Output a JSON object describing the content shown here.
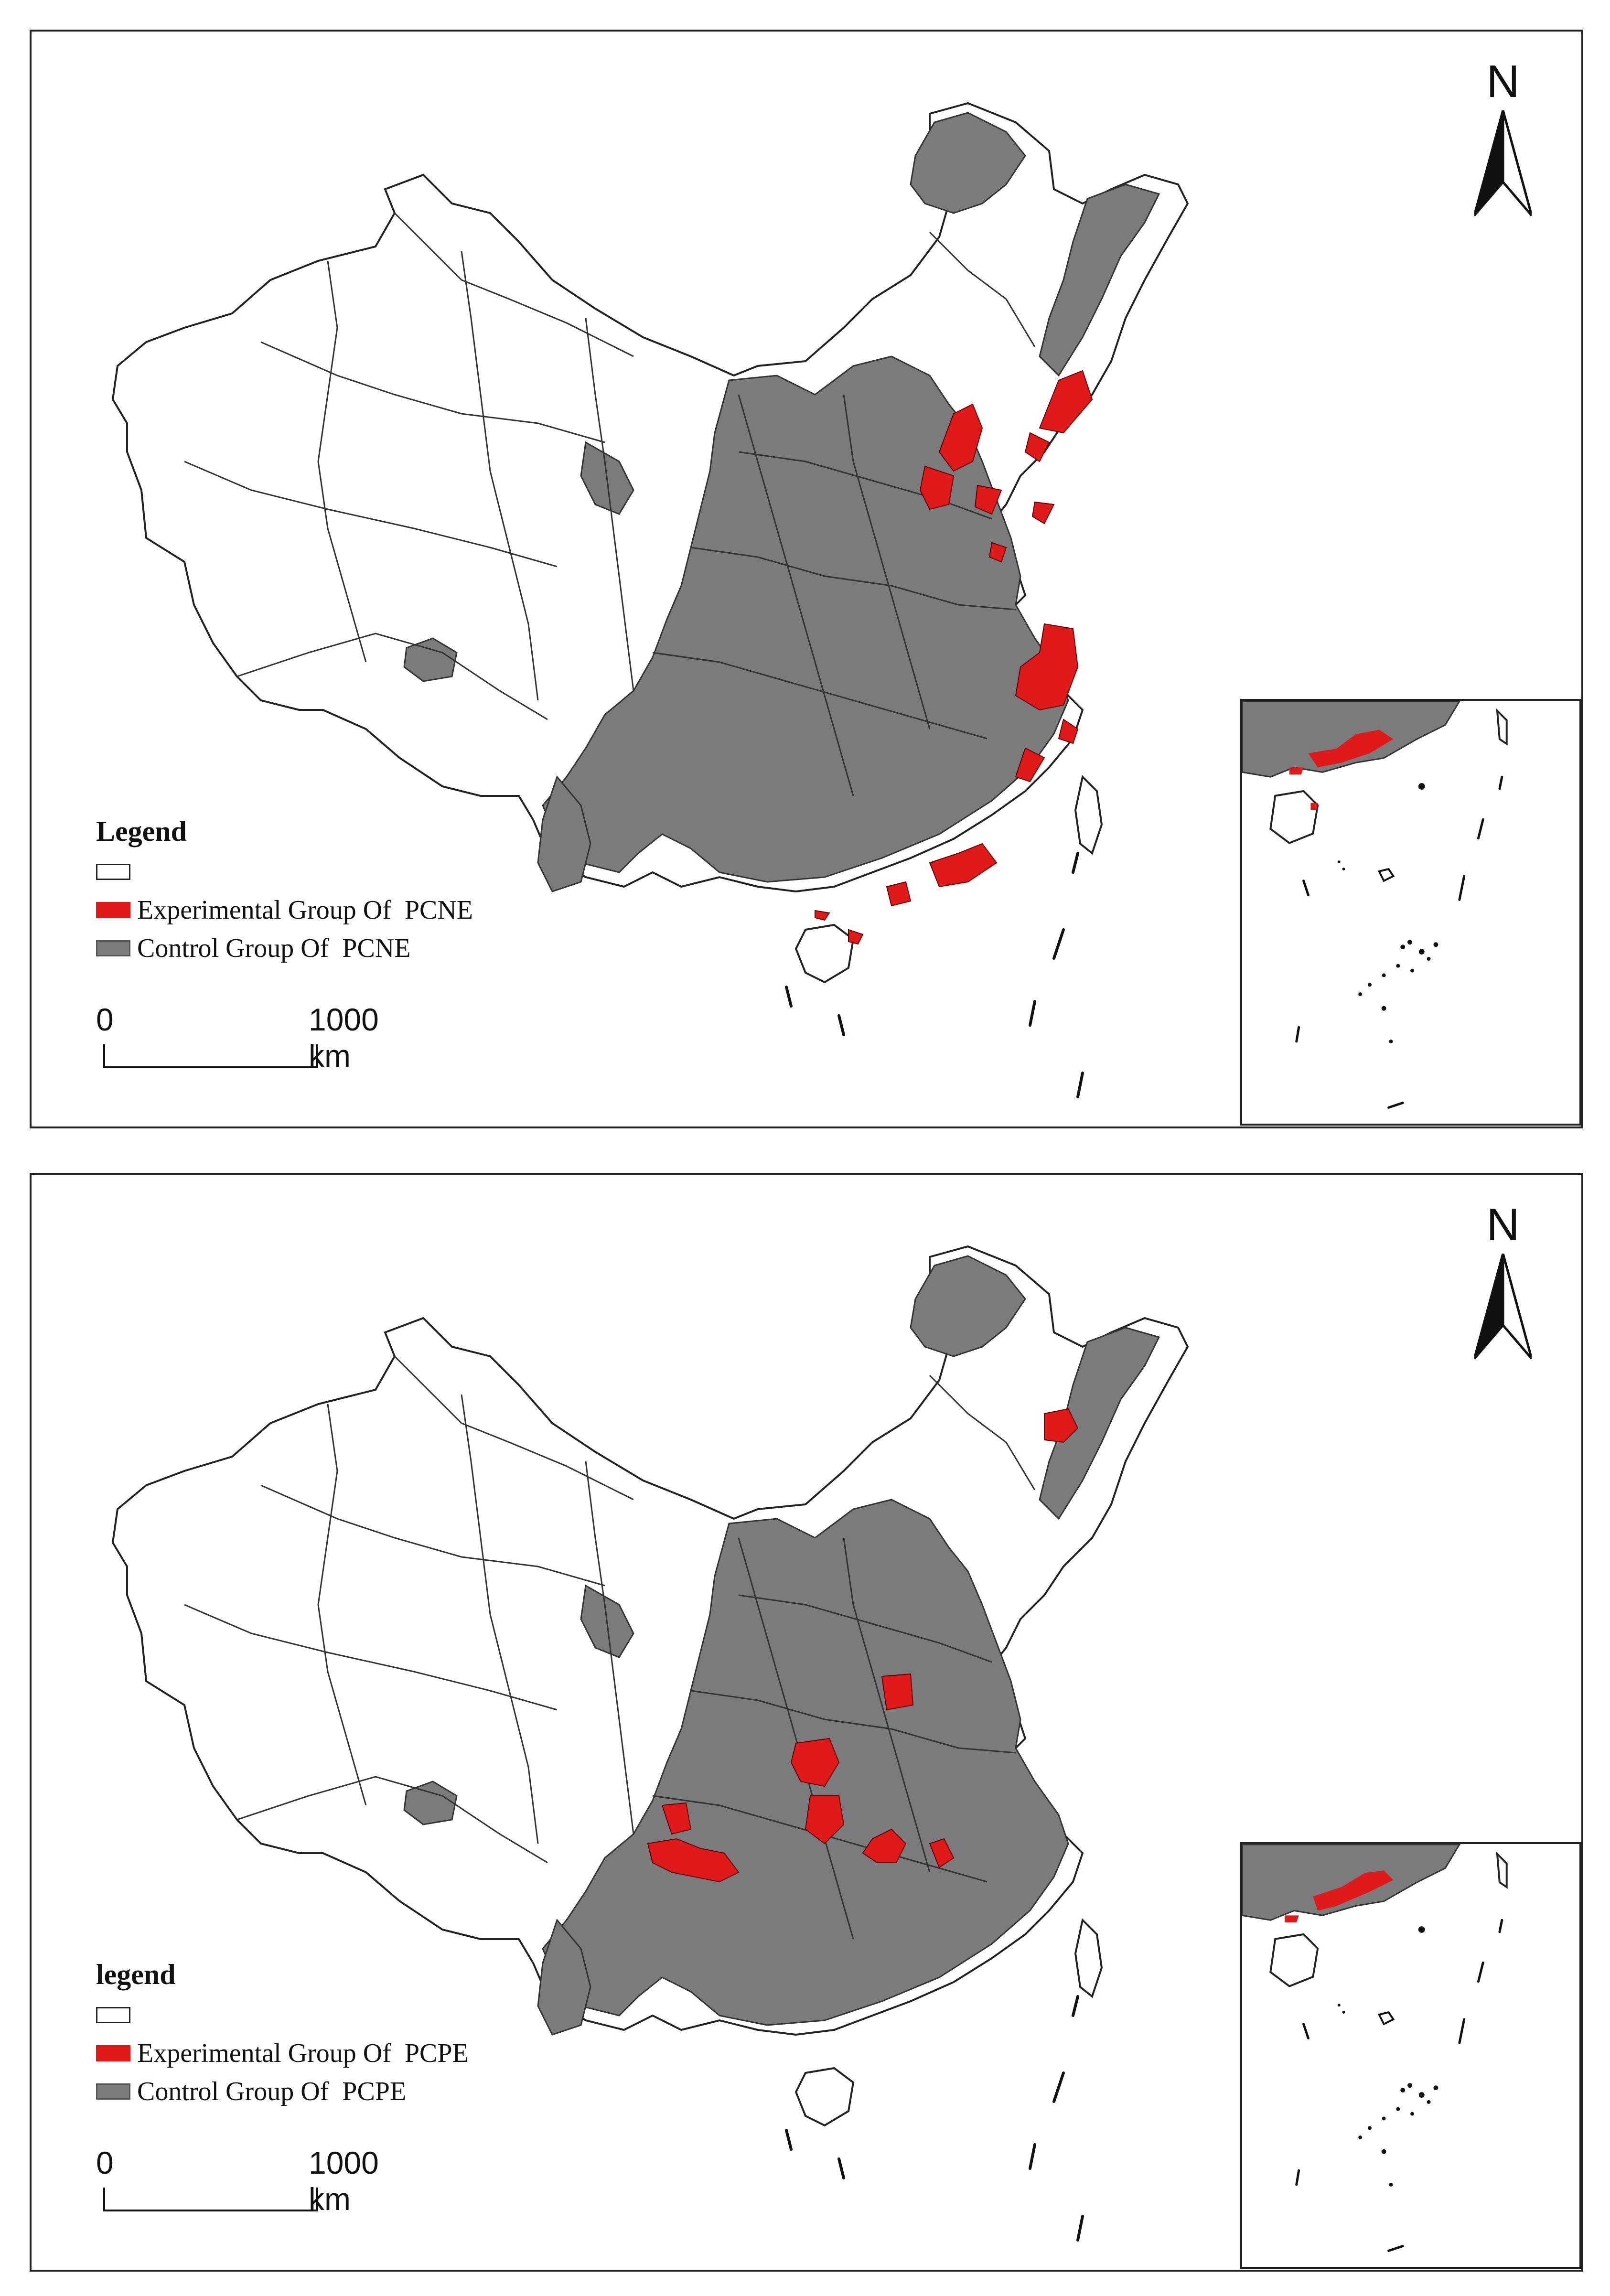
{
  "colors": {
    "experimental": "#e0191a",
    "control": "#7b7b7d",
    "outside": "#ffffff",
    "border": "#222222"
  },
  "north_arrow": {
    "letter": "N",
    "icon": "north-arrow-icon"
  },
  "scale_bar": {
    "zero": "0",
    "max": "1000 km"
  },
  "panels": [
    {
      "id": "pcne",
      "legend": {
        "title": "Legend",
        "items": [
          {
            "label": "",
            "color": "#ffffff"
          },
          {
            "label": "Experimental Group Of  PCNE",
            "color": "#e0191a"
          },
          {
            "label": "Control Group Of  PCNE",
            "color": "#7b7b7d"
          }
        ]
      }
    },
    {
      "id": "pcpe",
      "legend": {
        "title": "legend",
        "items": [
          {
            "label": "",
            "color": "#ffffff"
          },
          {
            "label": "Experimental Group Of  PCPE",
            "color": "#e0191a"
          },
          {
            "label": "Control Group Of  PCPE",
            "color": "#7b7b7d"
          }
        ]
      }
    }
  ]
}
